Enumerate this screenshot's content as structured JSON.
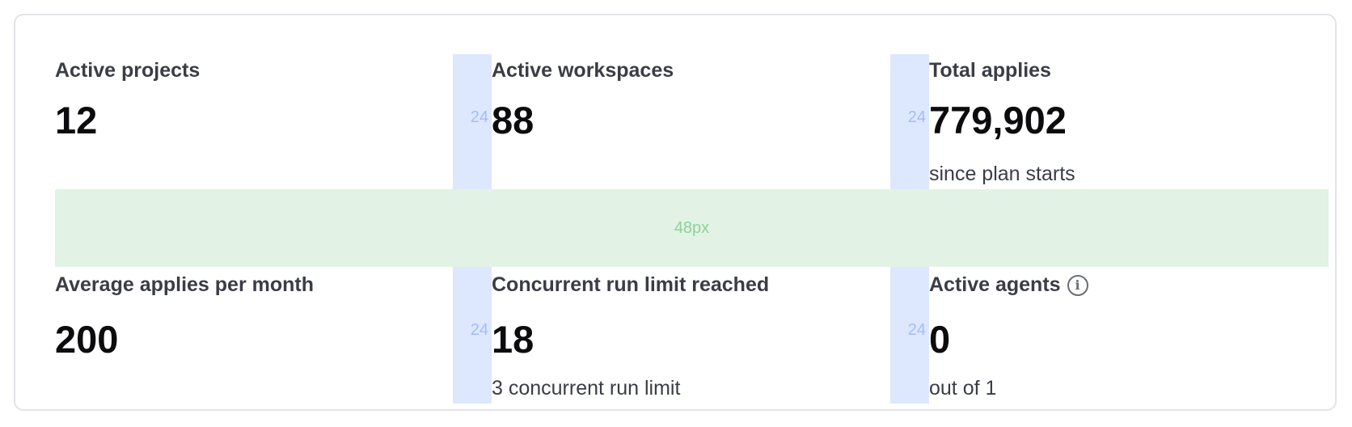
{
  "spacing": {
    "column_gap_label": "24",
    "row_gap_label": "48px"
  },
  "metrics": [
    {
      "label": "Active projects",
      "value": "12",
      "sub": ""
    },
    {
      "label": "Active workspaces",
      "value": "88",
      "sub": ""
    },
    {
      "label": "Total applies",
      "value": "779,902",
      "sub": "since plan starts"
    },
    {
      "label": "Average applies per month",
      "value": "200",
      "sub": ""
    },
    {
      "label": "Concurrent run limit reached",
      "value": "18",
      "sub": "3 concurrent run limit"
    },
    {
      "label": "Active agents",
      "value": "0",
      "sub": "out of 1",
      "icon": "info-icon"
    }
  ]
}
